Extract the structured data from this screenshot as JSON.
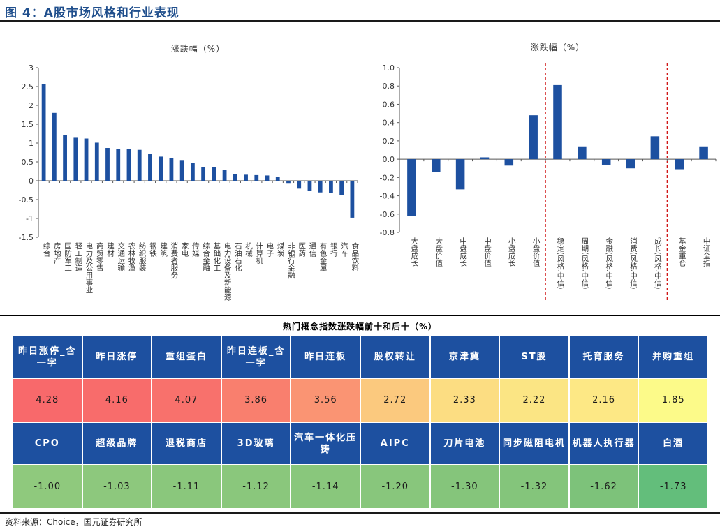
{
  "figure_title": "图 4：A股市场风格和行业表现",
  "chart_data": [
    {
      "type": "bar",
      "title": "涨跌幅（%）",
      "ylim": [
        -1.5,
        3
      ],
      "yticks": [
        3,
        2.5,
        2,
        1.5,
        1,
        0.5,
        0,
        -0.5,
        -1,
        -1.5
      ],
      "categories": [
        "综合",
        "房地产",
        "国防军工",
        "轻工制造",
        "电力及公用事业",
        "商贸零售",
        "建材",
        "交通运输",
        "农林牧渔",
        "纺织服装",
        "钢铁",
        "建筑",
        "消费者服务",
        "家电",
        "传媒",
        "综合金融",
        "基础化工",
        "电力设备及新能源",
        "石油石化",
        "机械",
        "计算机",
        "电子",
        "煤炭",
        "非银行金融",
        "医药",
        "通信",
        "有色金属",
        "银行",
        "汽车",
        "食品饮料"
      ],
      "values": [
        2.57,
        1.8,
        1.21,
        1.14,
        1.12,
        1.01,
        0.87,
        0.85,
        0.84,
        0.82,
        0.71,
        0.64,
        0.6,
        0.55,
        0.47,
        0.37,
        0.36,
        0.28,
        0.18,
        0.16,
        0.15,
        0.14,
        0.11,
        -0.06,
        -0.21,
        -0.27,
        -0.31,
        -0.33,
        -0.38,
        -0.98
      ],
      "color": "#1d50a0"
    },
    {
      "type": "bar",
      "title": "涨跌幅（%）",
      "ylim": [
        -0.8,
        1.0
      ],
      "yticks": [
        1.0,
        0.8,
        0.6,
        0.4,
        0.2,
        0.0,
        -0.2,
        -0.4,
        -0.6,
        -0.8
      ],
      "categories": [
        "大盘成长",
        "大盘价值",
        "中盘成长",
        "中盘价值",
        "小盘成长",
        "小盘价值",
        "稳定(风格.中信)",
        "周期(风格.中信)",
        "金融(风格.中信)",
        "消费(风格.中信)",
        "成长(风格.中信)",
        "基金重仓",
        "中证全指"
      ],
      "values": [
        -0.62,
        -0.14,
        -0.33,
        0.02,
        -0.07,
        0.48,
        0.81,
        0.14,
        -0.06,
        -0.1,
        0.25,
        -0.11,
        0.14
      ],
      "separators_after": [
        5,
        10
      ],
      "separator_color": "#cc0000",
      "color": "#1d50a0"
    }
  ],
  "hot_concepts": {
    "title": "热门概念指数涨跌幅前十和后十（%）",
    "top_names": [
      "昨日涨停_含一字",
      "昨日涨停",
      "重组蛋白",
      "昨日连板_含一字",
      "昨日连板",
      "股权转让",
      "京津冀",
      "ST股",
      "托育服务",
      "并购重组"
    ],
    "top_values": [
      "4.28",
      "4.16",
      "4.07",
      "3.86",
      "3.56",
      "2.72",
      "2.33",
      "2.22",
      "2.16",
      "1.85"
    ],
    "top_colors": [
      "#f8696b",
      "#f86c6b",
      "#f8716c",
      "#f97f6e",
      "#fa9473",
      "#fbc97e",
      "#fcdd82",
      "#fbe584",
      "#fde885",
      "#fcfa89"
    ],
    "bottom_names": [
      "CPO",
      "超级品牌",
      "退税商店",
      "3D玻璃",
      "汽车一体化压铸",
      "AIPC",
      "刀片电池",
      "同步磁阻电机",
      "机器人执行器",
      "白酒"
    ],
    "bottom_values": [
      "-1.00",
      "-1.03",
      "-1.11",
      "-1.12",
      "-1.14",
      "-1.20",
      "-1.30",
      "-1.32",
      "-1.62",
      "-1.73"
    ],
    "bottom_colors": [
      "#8fc97d",
      "#8dc87d",
      "#8ac77c",
      "#8ac77c",
      "#89c77c",
      "#88c67c",
      "#85c57b",
      "#84c57b",
      "#7dc27a",
      "#63be7b"
    ]
  },
  "source": "资料来源：Choice，国元证券研究所"
}
